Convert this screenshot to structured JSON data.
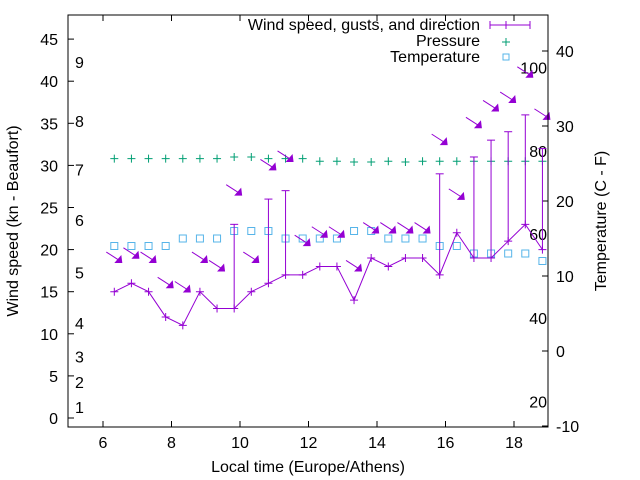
{
  "chart_data": {
    "type": "line",
    "title": "",
    "xlabel": "Local time (Europe/Athens)",
    "ylabel": "Wind speed (kn - Beaufort)",
    "y2label": "Temperature (C - F)",
    "xlim": [
      5.0,
      19.0
    ],
    "ylim": [
      -1,
      48
    ],
    "y2lim": [
      -10,
      45
    ],
    "xticks": [
      6,
      8,
      10,
      12,
      14,
      16,
      18
    ],
    "yticks": [
      0,
      5,
      10,
      15,
      20,
      25,
      30,
      35,
      40,
      45
    ],
    "y2ticks": [
      -10,
      0,
      10,
      20,
      30,
      40
    ],
    "beaufort_labels": [
      {
        "label": "1",
        "y": 1.3
      },
      {
        "label": "2",
        "y": 4.3
      },
      {
        "label": "3",
        "y": 7.3
      },
      {
        "label": "4",
        "y": 11.3
      },
      {
        "label": "5",
        "y": 17.3
      },
      {
        "label": "6",
        "y": 23.5
      },
      {
        "label": "7",
        "y": 29.5
      },
      {
        "label": "8",
        "y": 35.3
      },
      {
        "label": "9",
        "y": 42.3
      }
    ],
    "fahrenheit_labels": [
      {
        "label": "20",
        "y": -6.7
      },
      {
        "label": "40",
        "y": 4.4
      },
      {
        "label": "60",
        "y": 15.6
      },
      {
        "label": "80",
        "y": 26.7
      },
      {
        "label": "100",
        "y": 37.8
      }
    ],
    "legend": {
      "position": "top-right",
      "entries": [
        "Wind speed, gusts, and direction",
        "Pressure",
        "Temperature"
      ]
    },
    "colors": {
      "wind": "#9400d3",
      "pressure": "#009e73",
      "temperature": "#56b4e9"
    },
    "x": [
      6.33,
      6.83,
      7.33,
      7.83,
      8.33,
      8.83,
      9.33,
      9.83,
      10.33,
      10.83,
      11.33,
      11.83,
      12.33,
      12.83,
      13.33,
      13.83,
      14.33,
      14.83,
      15.33,
      15.83,
      16.33,
      16.83,
      17.33,
      17.83,
      18.33,
      18.83
    ],
    "series": [
      {
        "name": "Wind speed, gusts, and direction",
        "axis": "y",
        "values": [
          15,
          16,
          15,
          12,
          11,
          15,
          13,
          13,
          15,
          16,
          17,
          17,
          18,
          18,
          14,
          19,
          18,
          19,
          19,
          17,
          22,
          19,
          19,
          21,
          23,
          20
        ],
        "gusts": [
          null,
          null,
          null,
          null,
          null,
          null,
          null,
          23,
          null,
          26,
          27,
          null,
          null,
          null,
          null,
          null,
          null,
          null,
          null,
          29,
          null,
          31,
          33,
          34,
          36,
          32
        ],
        "direction_arrow_y": [
          19,
          19.5,
          19,
          16,
          15.5,
          19,
          18,
          27,
          19,
          30,
          31,
          21,
          22,
          22,
          18,
          22.5,
          22.5,
          22.5,
          22.5,
          33,
          26.5,
          35,
          37,
          38,
          41,
          36
        ]
      },
      {
        "name": "Pressure",
        "axis": "y (scaled)",
        "values": [
          30.8,
          30.8,
          30.8,
          30.8,
          30.8,
          30.8,
          30.8,
          31.0,
          31.0,
          30.8,
          30.8,
          30.8,
          30.5,
          30.5,
          30.4,
          30.4,
          30.5,
          30.4,
          30.5,
          30.5,
          30.5,
          30.5,
          30.5,
          30.5,
          30.5,
          30.5
        ]
      },
      {
        "name": "Temperature",
        "axis": "y2",
        "values": [
          14,
          14,
          14,
          14,
          15,
          15,
          15,
          16,
          16,
          16,
          15,
          15,
          15,
          15,
          16,
          16,
          15,
          15,
          15,
          14,
          14,
          13,
          13,
          13,
          13,
          12
        ]
      }
    ]
  }
}
